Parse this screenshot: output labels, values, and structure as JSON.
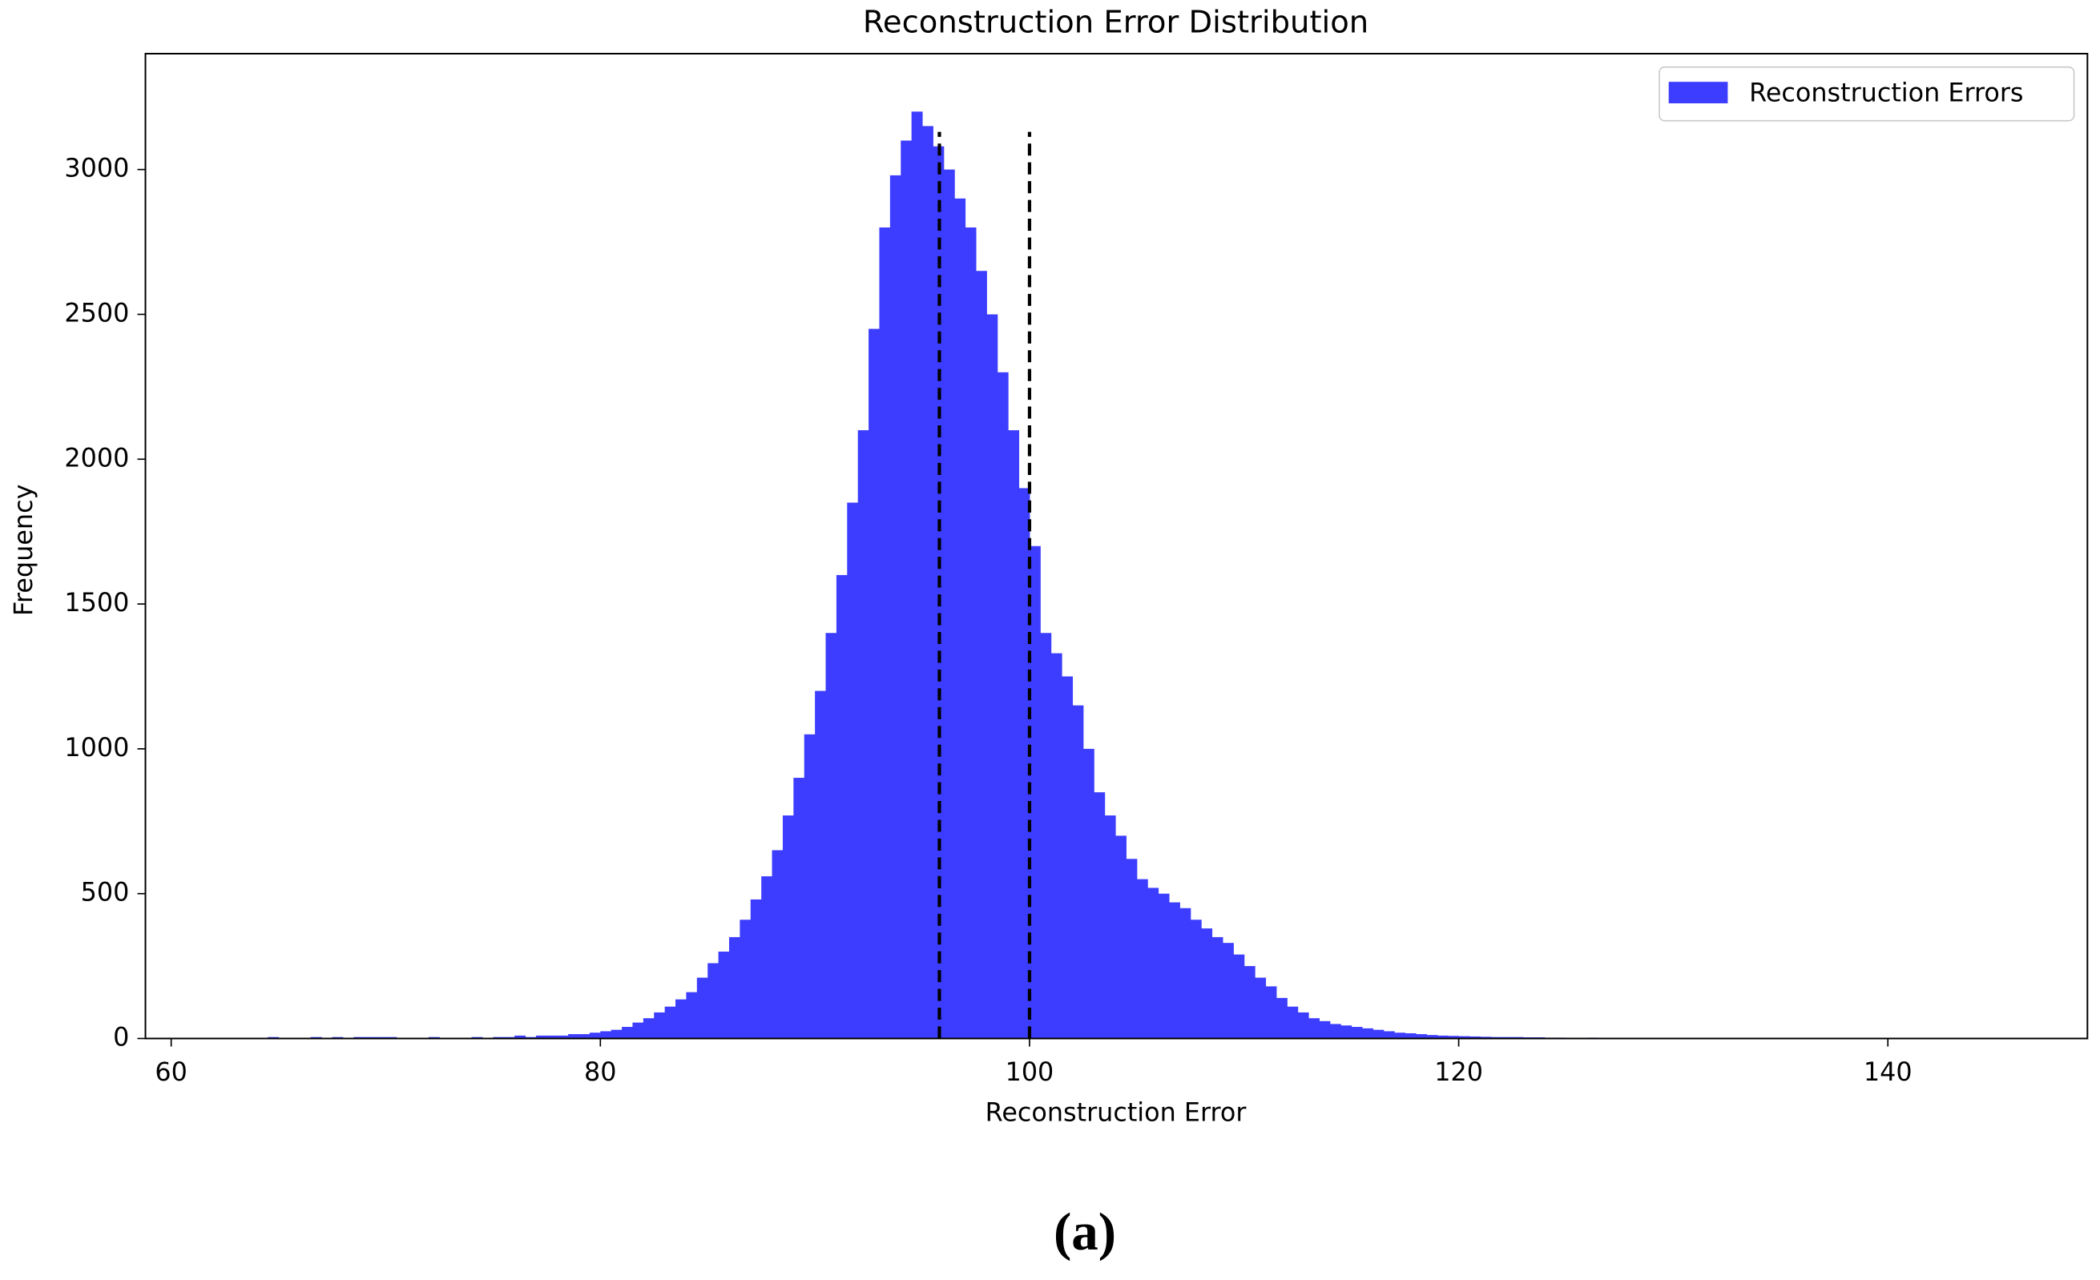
{
  "chart_data": {
    "type": "histogram",
    "title": "Reconstruction Error Distribution",
    "x_label": "Reconstruction Error",
    "y_label": "Frequency",
    "caption": "(a)",
    "color": "#3d3dff",
    "legend_position": "upper right",
    "series_name": "Reconstruction Errors",
    "bins": [
      64,
      64.5,
      65,
      65.5,
      66,
      66.5,
      67,
      67.5,
      68,
      68.5,
      69,
      69.5,
      70,
      70.5,
      71,
      71.5,
      72,
      72.5,
      73,
      73.5,
      74,
      74.5,
      75,
      75.5,
      76,
      76.5,
      77,
      77.5,
      78,
      78.5,
      79,
      79.5,
      80,
      80.5,
      81,
      81.5,
      82,
      82.5,
      83,
      83.5,
      84,
      84.5,
      85,
      85.5,
      86,
      86.5,
      87,
      87.5,
      88,
      88.5,
      89,
      89.5,
      90,
      90.5,
      91,
      91.5,
      92,
      92.5,
      93,
      93.5,
      94,
      94.5,
      95,
      95.5,
      96,
      96.5,
      97,
      97.5,
      98,
      98.5,
      99,
      99.5,
      100,
      100.5,
      101,
      101.5,
      102,
      102.5,
      103,
      103.5,
      104,
      104.5,
      105,
      105.5,
      106,
      106.5,
      107,
      107.5,
      108,
      108.5,
      109,
      109.5,
      110,
      110.5,
      111,
      111.5,
      112,
      112.5,
      113,
      113.5,
      114,
      114.5,
      115,
      115.5,
      116,
      116.5,
      117,
      117.5,
      118,
      118.5,
      119,
      119.5,
      120,
      120.5,
      121,
      121.5,
      122,
      122.5,
      123,
      123.5,
      124,
      124.5,
      125,
      125.5,
      126,
      126.5,
      127,
      127.5,
      128,
      128.5,
      129,
      129.5,
      130,
      130.5,
      131,
      131.5,
      132
    ],
    "values": [
      0,
      5,
      0,
      0,
      0,
      5,
      0,
      5,
      0,
      5,
      5,
      5,
      5,
      0,
      0,
      0,
      5,
      0,
      0,
      0,
      5,
      0,
      5,
      5,
      10,
      5,
      10,
      10,
      10,
      15,
      15,
      20,
      25,
      30,
      40,
      55,
      70,
      90,
      110,
      135,
      160,
      210,
      260,
      300,
      350,
      410,
      480,
      560,
      650,
      770,
      900,
      1050,
      1200,
      1400,
      1600,
      1850,
      2100,
      2450,
      2800,
      2980,
      3100,
      3200,
      3150,
      3080,
      3000,
      2900,
      2800,
      2650,
      2500,
      2300,
      2100,
      1900,
      1700,
      1400,
      1330,
      1250,
      1150,
      1000,
      850,
      770,
      700,
      620,
      550,
      520,
      500,
      470,
      450,
      410,
      380,
      350,
      330,
      290,
      250,
      210,
      180,
      140,
      110,
      90,
      70,
      60,
      50,
      45,
      40,
      35,
      30,
      25,
      20,
      18,
      15,
      12,
      10,
      9,
      8,
      7,
      6,
      5,
      5,
      5,
      4,
      4,
      3,
      3,
      2,
      2,
      3,
      2,
      2,
      2,
      2,
      1,
      2,
      1,
      1,
      0,
      0,
      2
    ],
    "vlines": [
      {
        "x": 95.8,
        "ymax": 3130
      },
      {
        "x": 100.0,
        "ymax": 3130
      }
    ],
    "xlim": [
      58.8,
      149.3
    ],
    "ylim": [
      0,
      3400
    ],
    "xticks": [
      60,
      80,
      100,
      120,
      140
    ],
    "yticks": [
      0,
      500,
      1000,
      1500,
      2000,
      2500,
      3000
    ]
  }
}
